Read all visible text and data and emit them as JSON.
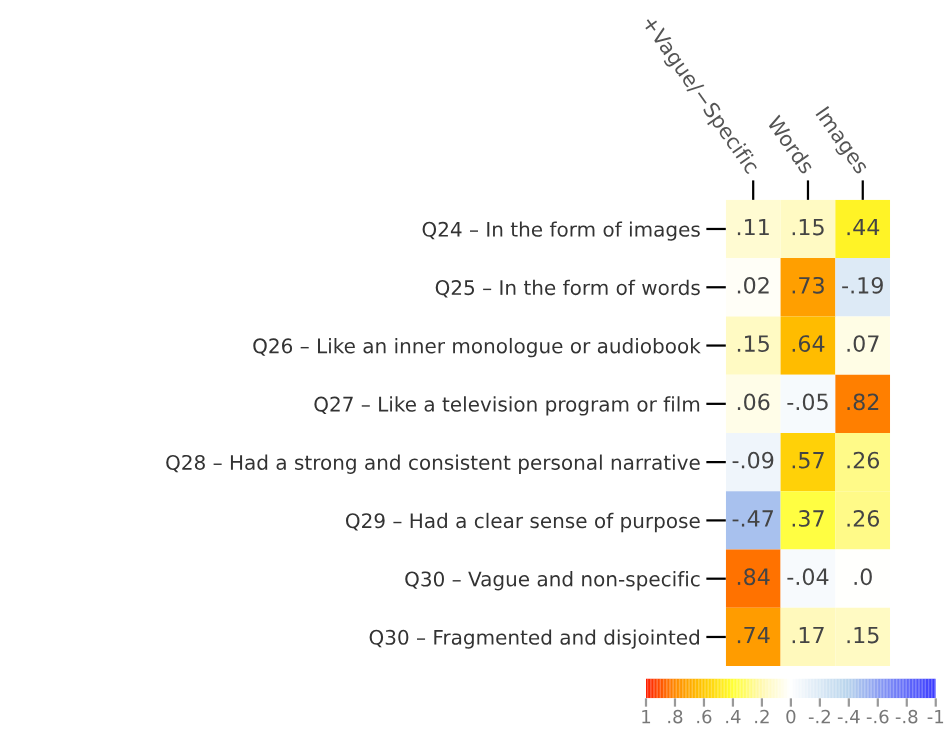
{
  "chart_data": {
    "type": "heatmap",
    "categories": [
      "+Vague/−Specific",
      "Words",
      "Images"
    ],
    "y_categories": [
      "Q24 – In the form of images",
      "Q25 – In the form of words",
      "Q26 – Like an inner monologue or audiobook",
      "Q27 – Like a television program or film",
      "Q28 – Had a strong and consistent personal narrative",
      "Q29 – Had a clear sense of purpose",
      "Q30 – Vague and non-specific",
      "Q30 – Fragmented and disjointed"
    ],
    "cells": [
      [
        0.11,
        0.15,
        0.44
      ],
      [
        0.02,
        0.73,
        -0.19
      ],
      [
        0.15,
        0.64,
        0.07
      ],
      [
        0.06,
        -0.05,
        0.82
      ],
      [
        -0.09,
        0.57,
        0.26
      ],
      [
        -0.47,
        0.37,
        0.26
      ],
      [
        0.84,
        -0.04,
        0.0
      ],
      [
        0.74,
        0.17,
        0.15
      ]
    ],
    "cell_labels": [
      [
        ".11",
        ".15",
        ".44"
      ],
      [
        ".02",
        ".73",
        "-.19"
      ],
      [
        ".15",
        ".64",
        ".07"
      ],
      [
        ".06",
        "-.05",
        ".82"
      ],
      [
        "-.09",
        ".57",
        ".26"
      ],
      [
        "-.47",
        ".37",
        ".26"
      ],
      [
        ".84",
        "-.04",
        ".0"
      ],
      [
        ".74",
        ".17",
        ".15"
      ]
    ],
    "clim": [
      1,
      -1
    ],
    "cticks": [
      {
        "value": 1,
        "label": "1"
      },
      {
        "value": 0.8,
        "label": ".8"
      },
      {
        "value": 0.6,
        "label": ".6"
      },
      {
        "value": 0.4,
        "label": ".4"
      },
      {
        "value": 0.2,
        "label": ".2"
      },
      {
        "value": 0,
        "label": "0"
      },
      {
        "value": -0.2,
        "label": "-.2"
      },
      {
        "value": -0.4,
        "label": "-.4"
      },
      {
        "value": -0.6,
        "label": "-.6"
      },
      {
        "value": -0.8,
        "label": "-.8"
      },
      {
        "value": -1,
        "label": "-1"
      }
    ]
  }
}
